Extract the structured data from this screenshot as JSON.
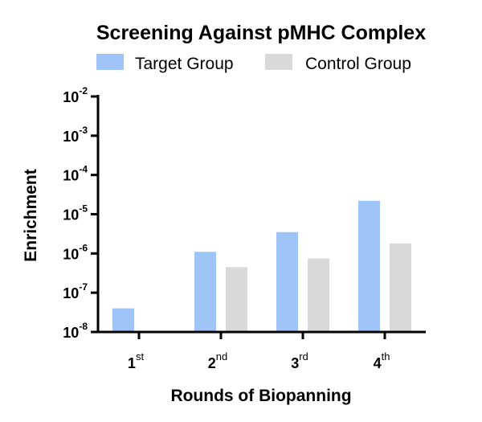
{
  "chart_data": {
    "type": "bar",
    "title": "Screening Against pMHC Complex",
    "xlabel": "Rounds of Biopanning",
    "ylabel": "Enrichment",
    "yscale": "log",
    "ylim": [
      1e-08,
      0.01
    ],
    "yticks": [
      {
        "base": "10",
        "exp": "-2",
        "value": 0.01
      },
      {
        "base": "10",
        "exp": "-3",
        "value": 0.001
      },
      {
        "base": "10",
        "exp": "-4",
        "value": 0.0001
      },
      {
        "base": "10",
        "exp": "-5",
        "value": 1e-05
      },
      {
        "base": "10",
        "exp": "-6",
        "value": 1e-06
      },
      {
        "base": "10",
        "exp": "-7",
        "value": 1e-07
      },
      {
        "base": "10",
        "exp": "-8",
        "value": 1e-08
      }
    ],
    "categories": [
      {
        "main": "1",
        "sup": "st"
      },
      {
        "main": "2",
        "sup": "nd"
      },
      {
        "main": "3",
        "sup": "rd"
      },
      {
        "main": "4",
        "sup": "th"
      }
    ],
    "series": [
      {
        "name": "Target Group",
        "color": "#9fc5f8",
        "values": [
          4e-08,
          1.1e-06,
          3.5e-06,
          2.2e-05
        ]
      },
      {
        "name": "Control Group",
        "color": "#d9d9d9",
        "values": [
          null,
          4.5e-07,
          7.5e-07,
          1.8e-06
        ]
      }
    ],
    "legend_position": "top",
    "grid": false
  }
}
